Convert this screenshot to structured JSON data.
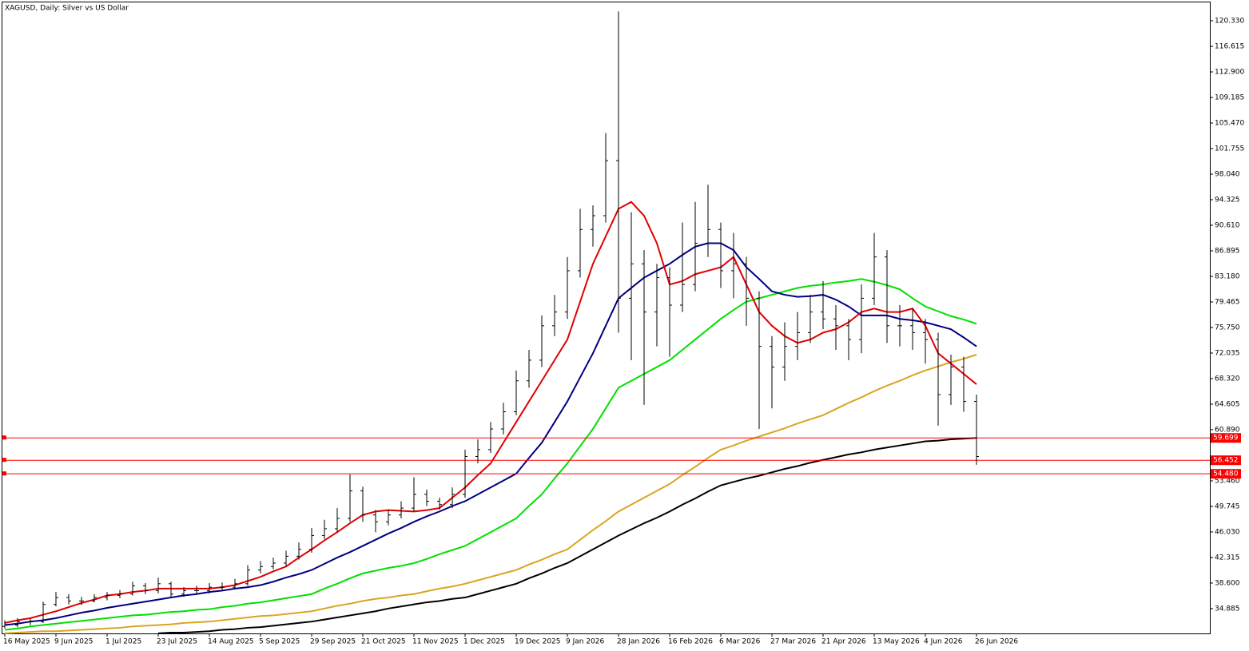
{
  "chart_data": {
    "type": "ohlc",
    "title": "XAGUSD, Daily:  Silver vs US Dollar",
    "categories": [
      "16 May 2025",
      null,
      null,
      null,
      "9 Jun 2025",
      null,
      null,
      null,
      "1 Jul 2025",
      null,
      null,
      null,
      "23 Jul 2025",
      null,
      null,
      null,
      "14 Aug 2025",
      null,
      null,
      null,
      "5 Sep 2025",
      null,
      null,
      null,
      "29 Sep 2025",
      null,
      null,
      null,
      "21 Oct 2025",
      null,
      null,
      null,
      "11 Nov 2025",
      null,
      null,
      null,
      "1 Dec 2025",
      null,
      null,
      null,
      "19 Dec 2025",
      null,
      null,
      null,
      "9 Jan 2026",
      null,
      null,
      null,
      "28 Jan 2026",
      null,
      null,
      null,
      "16 Feb 2026",
      null,
      null,
      null,
      "6 Mar 2026",
      null,
      null,
      null,
      "27 Mar 2026",
      null,
      null,
      null,
      "21 Apr 2026",
      null,
      null,
      null,
      "13 May 2026",
      null,
      null,
      null,
      "4 Jun 2026",
      null,
      null,
      null,
      "26 Jun 2026"
    ],
    "open": [
      32.3,
      32.5,
      33,
      33,
      35.5,
      36.5,
      36,
      36,
      36.5,
      36.8,
      37,
      38.2,
      37.5,
      38.5,
      37,
      37.5,
      37.5,
      38,
      38,
      38.5,
      40.5,
      41,
      41.5,
      42.5,
      43.5,
      45.5,
      46.5,
      48,
      52,
      48.5,
      47.5,
      48.5,
      49.5,
      51.5,
      50.5,
      50,
      51.5,
      57,
      58,
      61,
      63.5,
      68,
      71,
      76,
      78,
      84,
      90,
      92,
      100,
      80,
      85,
      78,
      83,
      79,
      82,
      88,
      90,
      84,
      85,
      80,
      73,
      70,
      73,
      75,
      78,
      77,
      76,
      74,
      80,
      86,
      76,
      76,
      75,
      74,
      66,
      70,
      65
    ],
    "high": [
      33.2,
      33.5,
      33.4,
      35.9,
      37.3,
      37.0,
      36.6,
      37.0,
      37.3,
      37.6,
      38.8,
      38.6,
      39.4,
      38.8,
      38.0,
      38.2,
      38.6,
      38.7,
      39.2,
      41.2,
      41.8,
      42.3,
      43.3,
      44.5,
      46.6,
      47.8,
      49.5,
      54.4,
      52.6,
      49.2,
      49.3,
      50.5,
      54.0,
      52.2,
      51.0,
      52.5,
      58.0,
      59.5,
      62.0,
      64.8,
      69.5,
      72.5,
      77.5,
      80.5,
      86.0,
      93.0,
      93.5,
      104.0,
      121.7,
      92.5,
      87.0,
      85.0,
      84.5,
      91.0,
      94.0,
      96.5,
      91.0,
      89.5,
      86.0,
      81.0,
      74.5,
      76.5,
      78.0,
      80.5,
      82.5,
      79.0,
      77.0,
      82.0,
      89.5,
      87.0,
      79.0,
      78.5,
      77.0,
      75.0,
      71.8,
      71.5,
      66.0
    ],
    "low": [
      32.0,
      32.2,
      32.5,
      32.8,
      35.2,
      35.5,
      35.4,
      35.8,
      36.1,
      36.4,
      36.8,
      37.0,
      37.1,
      36.5,
      36.6,
      37.0,
      37.1,
      37.4,
      37.7,
      38.2,
      40.0,
      40.6,
      41.0,
      42.0,
      43.0,
      45.0,
      46.0,
      47.5,
      47.5,
      46.0,
      47.0,
      48.0,
      49.0,
      49.8,
      49.3,
      49.5,
      51.0,
      56.0,
      57.5,
      60.2,
      63.0,
      67.0,
      70.0,
      74.5,
      77.0,
      83.0,
      87.5,
      91.0,
      75.0,
      71.0,
      64.5,
      73.0,
      71.5,
      78.0,
      81.0,
      86.0,
      81.5,
      80.0,
      76.0,
      61.0,
      64.0,
      68.0,
      71.0,
      73.5,
      75.5,
      72.5,
      71.0,
      72.0,
      79.0,
      73.5,
      73.0,
      72.5,
      70.5,
      61.5,
      64.5,
      63.5,
      55.8
    ],
    "close": [
      32.5,
      33,
      33,
      35.5,
      36.5,
      36,
      36,
      36.5,
      36.8,
      37,
      38.2,
      37.5,
      38.5,
      37,
      37.5,
      37.5,
      38,
      38,
      38.5,
      40.5,
      41,
      41.5,
      42.5,
      43.5,
      45.5,
      46.5,
      48,
      52,
      48.5,
      47.5,
      48.5,
      49.5,
      51.5,
      50.5,
      50,
      51.5,
      57,
      58,
      61,
      63.5,
      68,
      71,
      76,
      78,
      84,
      90,
      92,
      100,
      80,
      85,
      78,
      83,
      79,
      82,
      88,
      90,
      84,
      85,
      80,
      73,
      70,
      73,
      75,
      78,
      77,
      76,
      74,
      80,
      86,
      76,
      76,
      75,
      74,
      66,
      70,
      65,
      57
    ],
    "bar_color": "#000000",
    "series": [
      {
        "color": "#000000",
        "values": [
          null,
          null,
          null,
          null,
          null,
          null,
          null,
          null,
          null,
          null,
          null,
          null,
          31.3,
          31.4,
          31.4,
          31.5,
          31.6,
          31.8,
          31.9,
          32.1,
          32.2,
          32.4,
          32.6,
          32.8,
          33.0,
          33.3,
          33.6,
          33.9,
          34.2,
          34.5,
          34.9,
          35.2,
          35.5,
          35.8,
          36.0,
          36.3,
          36.5,
          37.0,
          37.5,
          38.0,
          38.5,
          39.3,
          40.0,
          40.8,
          41.5,
          42.5,
          43.5,
          44.5,
          45.5,
          46.4,
          47.3,
          48.1,
          49.0,
          50.0,
          50.9,
          51.9,
          52.8,
          53.3,
          53.8,
          54.2,
          54.7,
          55.2,
          55.6,
          56.1,
          56.5,
          56.9,
          57.3,
          57.6,
          58.0,
          58.3,
          58.6,
          58.9,
          59.2,
          59.3,
          59.5,
          59.6,
          59.7
        ]
      },
      {
        "color": "#daa520",
        "values": [
          31.3,
          31.4,
          31.5,
          31.6,
          31.6,
          31.7,
          31.8,
          31.9,
          32.0,
          32.1,
          32.3,
          32.4,
          32.5,
          32.6,
          32.8,
          32.9,
          33.0,
          33.2,
          33.4,
          33.6,
          33.8,
          33.9,
          34.1,
          34.3,
          34.5,
          34.9,
          35.3,
          35.6,
          36.0,
          36.3,
          36.5,
          36.8,
          37.0,
          37.4,
          37.8,
          38.1,
          38.5,
          39.0,
          39.5,
          40.0,
          40.5,
          41.3,
          42.0,
          42.8,
          43.5,
          44.9,
          46.3,
          47.6,
          49.0,
          50.0,
          51.0,
          52.0,
          53.0,
          54.3,
          55.5,
          56.8,
          58.0,
          58.6,
          59.3,
          59.9,
          60.5,
          61.1,
          61.8,
          62.4,
          63.0,
          63.9,
          64.8,
          65.6,
          66.5,
          67.3,
          68.0,
          68.8,
          69.5,
          70.1,
          70.7,
          71.2,
          71.8
        ]
      },
      {
        "color": "#00e000",
        "values": [
          31.8,
          32.0,
          32.3,
          32.5,
          32.7,
          32.9,
          33.1,
          33.3,
          33.5,
          33.7,
          33.9,
          34.0,
          34.2,
          34.4,
          34.5,
          34.7,
          34.8,
          35.1,
          35.3,
          35.6,
          35.8,
          36.1,
          36.4,
          36.7,
          37.0,
          37.8,
          38.5,
          39.3,
          40.0,
          40.4,
          40.8,
          41.1,
          41.5,
          42.1,
          42.8,
          43.4,
          44.0,
          45.0,
          46.0,
          47.0,
          48.0,
          49.8,
          51.5,
          53.8,
          56.0,
          58.5,
          61.0,
          64.0,
          67.0,
          68.0,
          69.0,
          70.0,
          71.0,
          72.5,
          74.0,
          75.5,
          77.0,
          78.3,
          79.5,
          80.0,
          80.5,
          81.0,
          81.5,
          81.8,
          82.0,
          82.3,
          82.5,
          82.8,
          82.4,
          81.9,
          81.3,
          80.0,
          78.8,
          78.1,
          77.4,
          76.9,
          76.3
        ]
      },
      {
        "color": "#000080",
        "values": [
          32.5,
          32.7,
          33.0,
          33.2,
          33.5,
          33.9,
          34.3,
          34.6,
          35.0,
          35.3,
          35.6,
          35.9,
          36.2,
          36.5,
          36.8,
          37.0,
          37.3,
          37.5,
          37.8,
          38.0,
          38.3,
          38.8,
          39.4,
          39.9,
          40.5,
          41.4,
          42.3,
          43.1,
          44.0,
          44.9,
          45.8,
          46.6,
          47.5,
          48.3,
          49.0,
          49.8,
          50.5,
          51.5,
          52.5,
          53.5,
          54.5,
          56.8,
          59.0,
          62.0,
          65.0,
          68.5,
          72.0,
          76.0,
          80.0,
          81.5,
          83.0,
          84.0,
          85.0,
          86.3,
          87.5,
          88.0,
          88.0,
          87.0,
          84.5,
          82.8,
          81.0,
          80.5,
          80.2,
          80.3,
          80.5,
          79.8,
          78.8,
          77.5,
          77.5,
          77.5,
          77.0,
          76.8,
          76.5,
          76.0,
          75.5,
          74.3,
          73.0
        ]
      },
      {
        "color": "#e00000",
        "values": [
          32.8,
          33.2,
          33.5,
          34.0,
          34.5,
          35.1,
          35.7,
          36.2,
          36.8,
          37.0,
          37.3,
          37.5,
          37.8,
          37.8,
          37.8,
          37.8,
          37.8,
          38.0,
          38.3,
          38.9,
          39.5,
          40.3,
          41.0,
          42.3,
          43.5,
          44.8,
          46.0,
          47.3,
          48.5,
          49.0,
          49.2,
          49.1,
          49.0,
          49.2,
          49.5,
          51.0,
          52.5,
          54.3,
          56.0,
          59.0,
          62.0,
          65.0,
          68.0,
          71.0,
          74.0,
          79.5,
          85.0,
          89.0,
          93.0,
          94.0,
          92.0,
          88.0,
          82.0,
          82.5,
          83.5,
          84.0,
          84.5,
          86.0,
          82.0,
          78.0,
          76.0,
          74.5,
          73.5,
          74.0,
          75.0,
          75.5,
          76.5,
          78.0,
          78.5,
          78.0,
          78.0,
          78.5,
          76.0,
          72.0,
          70.5,
          69.0,
          67.5
        ]
      }
    ],
    "hlines": [
      {
        "value": 59.699,
        "label": "59.699"
      },
      {
        "value": 56.452,
        "label": "56.452"
      },
      {
        "value": 54.48,
        "label": "54.480"
      }
    ],
    "hline_color": "#ff0000",
    "ylim": [
      31.28,
      123.12
    ],
    "yticks": [
      {
        "value": 120.33,
        "label": "120.330"
      },
      {
        "value": 116.615,
        "label": "116.615"
      },
      {
        "value": 112.9,
        "label": "112.900"
      },
      {
        "value": 109.185,
        "label": "109.185"
      },
      {
        "value": 105.47,
        "label": "105.470"
      },
      {
        "value": 101.755,
        "label": "101.755"
      },
      {
        "value": 98.04,
        "label": "98.040"
      },
      {
        "value": 94.325,
        "label": "94.325"
      },
      {
        "value": 90.61,
        "label": "90.610"
      },
      {
        "value": 86.895,
        "label": "86.895"
      },
      {
        "value": 83.18,
        "label": "83.180"
      },
      {
        "value": 79.465,
        "label": "79.465"
      },
      {
        "value": 75.75,
        "label": "75.750"
      },
      {
        "value": 72.035,
        "label": "72.035"
      },
      {
        "value": 68.32,
        "label": "68.320"
      },
      {
        "value": 64.605,
        "label": "64.605"
      },
      {
        "value": 60.89,
        "label": "60.890"
      },
      {
        "value": 53.46,
        "label": "53.460"
      },
      {
        "value": 49.745,
        "label": "49.745"
      },
      {
        "value": 46.03,
        "label": "46.030"
      },
      {
        "value": 42.315,
        "label": "42.315"
      },
      {
        "value": 38.6,
        "label": "38.600"
      },
      {
        "value": 34.885,
        "label": "34.885"
      }
    ]
  }
}
